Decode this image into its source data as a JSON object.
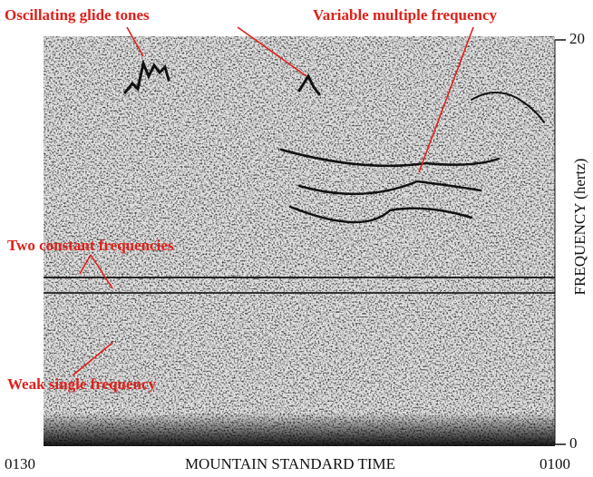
{
  "chart_data": {
    "type": "spectrogram",
    "xlabel": "MOUNTAIN STANDARD TIME",
    "x_labels": [
      "0130",
      "0100"
    ],
    "ylabel": "FREQUENCY (hertz)",
    "ylim": [
      0,
      20
    ],
    "yticks": [
      0,
      20
    ],
    "annotations": [
      "Oscillating glide tones",
      "Variable multiple frequency",
      "Two constant frequencies",
      "Weak single frequency"
    ],
    "annotation_color": "#e0201a"
  }
}
